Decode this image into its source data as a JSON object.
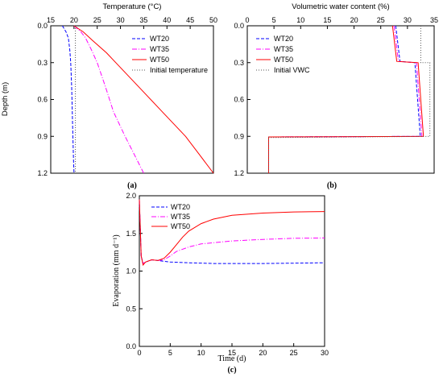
{
  "chart_data": [
    {
      "type": "line",
      "panel_label": "(a)",
      "title": "",
      "xlabel": "Temperature (°C)",
      "ylabel": "Depth (m)",
      "xlim": [
        15,
        50
      ],
      "ylim": [
        0,
        1.2
      ],
      "x_ticks": [
        "15",
        "20",
        "25",
        "30",
        "35",
        "40",
        "45",
        "50"
      ],
      "y_ticks": [
        "0.0",
        "0.3",
        "0.6",
        "0.9",
        "1.2"
      ],
      "legend_position": "top-right",
      "series": [
        {
          "name": "WT20",
          "color": "#0000ff",
          "dash": "4,2",
          "points": [
            [
              17.5,
              0
            ],
            [
              18.3,
              0.05
            ],
            [
              18.8,
              0.1
            ],
            [
              19.1,
              0.2
            ],
            [
              19.3,
              0.3
            ],
            [
              19.5,
              0.5
            ],
            [
              19.7,
              0.8
            ],
            [
              19.9,
              1.1
            ],
            [
              20,
              1.2
            ]
          ]
        },
        {
          "name": "WT35",
          "color": "#ff00ff",
          "dash": "6,2,1,2",
          "points": [
            [
              20,
              0
            ],
            [
              21.5,
              0.05
            ],
            [
              22.5,
              0.1
            ],
            [
              23.8,
              0.2
            ],
            [
              25,
              0.3
            ],
            [
              26.8,
              0.5
            ],
            [
              28.5,
              0.7
            ],
            [
              31,
              0.9
            ],
            [
              33,
              1.05
            ],
            [
              35,
              1.2
            ]
          ]
        },
        {
          "name": "WT50",
          "color": "#ff0000",
          "dash": "",
          "points": [
            [
              20,
              0
            ],
            [
              22,
              0.05
            ],
            [
              24,
              0.12
            ],
            [
              27,
              0.22
            ],
            [
              29,
              0.3
            ],
            [
              34,
              0.5
            ],
            [
              39,
              0.7
            ],
            [
              44,
              0.9
            ],
            [
              47,
              1.05
            ],
            [
              50,
              1.2
            ]
          ]
        },
        {
          "name": "Initial temperature",
          "color": "#555555",
          "dash": "1,2",
          "points": [
            [
              20.3,
              0
            ],
            [
              20.3,
              1.2
            ]
          ]
        }
      ]
    },
    {
      "type": "line",
      "panel_label": "(b)",
      "title": "",
      "xlabel": "Volumetric water content (%)",
      "ylabel": "",
      "xlim": [
        0,
        35
      ],
      "ylim": [
        0,
        1.2
      ],
      "x_ticks": [
        "0",
        "5",
        "10",
        "15",
        "20",
        "25",
        "30",
        "35"
      ],
      "y_ticks": [
        "0.0",
        "0.3",
        "0.6",
        "0.9",
        "1.2"
      ],
      "legend_position": "top-left",
      "series": [
        {
          "name": "WT20",
          "color": "#0000ff",
          "dash": "4,2",
          "points": [
            [
              27.8,
              0
            ],
            [
              28.6,
              0.29
            ],
            [
              31.4,
              0.3
            ],
            [
              32.4,
              0.9
            ],
            [
              4,
              0.905
            ],
            [
              4,
              1.2
            ]
          ]
        },
        {
          "name": "WT35",
          "color": "#ff00ff",
          "dash": "6,2,1,2",
          "points": [
            [
              27.5,
              0
            ],
            [
              28.3,
              0.29
            ],
            [
              31.7,
              0.3
            ],
            [
              32.7,
              0.9
            ],
            [
              4,
              0.905
            ],
            [
              4,
              1.2
            ]
          ]
        },
        {
          "name": "WT50",
          "color": "#ff0000",
          "dash": "",
          "points": [
            [
              27.2,
              0
            ],
            [
              28,
              0.29
            ],
            [
              32,
              0.3
            ],
            [
              33,
              0.9
            ],
            [
              4,
              0.905
            ],
            [
              4,
              1.2
            ]
          ]
        },
        {
          "name": "Initial VWC",
          "color": "#555555",
          "dash": "1,2",
          "points": [
            [
              32.5,
              0
            ],
            [
              32.5,
              0.3
            ],
            [
              34.2,
              0.3
            ],
            [
              34.2,
              0.9
            ],
            [
              4,
              0.91
            ],
            [
              4,
              1.2
            ]
          ]
        }
      ]
    },
    {
      "type": "line",
      "panel_label": "(c)",
      "title": "",
      "xlabel": "Time (d)",
      "ylabel": "Evaporation (mm d⁻¹)",
      "xlim": [
        0,
        30
      ],
      "ylim": [
        0,
        2.0
      ],
      "x_ticks": [
        "0",
        "5",
        "10",
        "15",
        "20",
        "25",
        "30"
      ],
      "y_ticks": [
        "0.0",
        "0.5",
        "1.0",
        "1.5",
        "2.0"
      ],
      "legend_position": "top-left",
      "series": [
        {
          "name": "WT20",
          "color": "#0000ff",
          "dash": "4,2",
          "points": [
            [
              0,
              1.95
            ],
            [
              0.3,
              1.2
            ],
            [
              0.6,
              1.1
            ],
            [
              1,
              1.12
            ],
            [
              2,
              1.15
            ],
            [
              3,
              1.14
            ],
            [
              5,
              1.12
            ],
            [
              8,
              1.11
            ],
            [
              12,
              1.1
            ],
            [
              15,
              1.1
            ],
            [
              20,
              1.1
            ],
            [
              25,
              1.105
            ],
            [
              30,
              1.11
            ]
          ]
        },
        {
          "name": "WT35",
          "color": "#ff00ff",
          "dash": "6,2,1,2",
          "points": [
            [
              0,
              1.95
            ],
            [
              0.3,
              1.2
            ],
            [
              0.6,
              1.1
            ],
            [
              1,
              1.12
            ],
            [
              2,
              1.15
            ],
            [
              3,
              1.14
            ],
            [
              4,
              1.15
            ],
            [
              5,
              1.2
            ],
            [
              6,
              1.26
            ],
            [
              8,
              1.32
            ],
            [
              10,
              1.36
            ],
            [
              15,
              1.4
            ],
            [
              20,
              1.42
            ],
            [
              25,
              1.435
            ],
            [
              30,
              1.44
            ]
          ]
        },
        {
          "name": "WT50",
          "color": "#ff0000",
          "dash": "",
          "points": [
            [
              0,
              1.95
            ],
            [
              0.3,
              1.2
            ],
            [
              0.6,
              1.08
            ],
            [
              1,
              1.12
            ],
            [
              2,
              1.15
            ],
            [
              3,
              1.14
            ],
            [
              4,
              1.17
            ],
            [
              5,
              1.25
            ],
            [
              6,
              1.35
            ],
            [
              7,
              1.45
            ],
            [
              8,
              1.53
            ],
            [
              10,
              1.63
            ],
            [
              12,
              1.69
            ],
            [
              15,
              1.74
            ],
            [
              20,
              1.77
            ],
            [
              25,
              1.785
            ],
            [
              30,
              1.79
            ]
          ]
        }
      ]
    }
  ]
}
